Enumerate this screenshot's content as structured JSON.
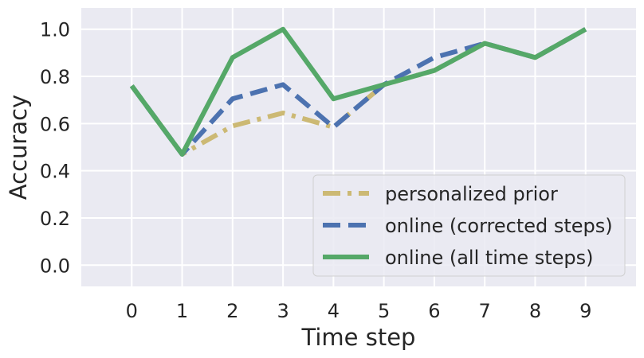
{
  "chart_data": {
    "type": "line",
    "xlabel": "Time step",
    "ylabel": "Accuracy",
    "x": [
      0,
      1,
      2,
      3,
      4,
      5,
      6,
      7,
      8,
      9
    ],
    "xticks": [
      "0",
      "1",
      "2",
      "3",
      "4",
      "5",
      "6",
      "7",
      "8",
      "9"
    ],
    "xlim": [
      -1,
      10
    ],
    "yticks": [
      "0.0",
      "0.2",
      "0.4",
      "0.6",
      "0.8",
      "1.0"
    ],
    "ylim": [
      -0.09,
      1.09
    ],
    "grid": true,
    "legend_position": "lower-right",
    "background": "#eaeaf2",
    "series": [
      {
        "name": "personalized prior",
        "color": "#ccb974",
        "style": "dashdot",
        "values": [
          0.76,
          0.47,
          0.59,
          0.645,
          0.585,
          0.765,
          0.825,
          0.94,
          0.88,
          1.0
        ]
      },
      {
        "name": "online (corrected steps)",
        "color": "#4c72b0",
        "style": "dashed",
        "values": [
          0.76,
          0.47,
          0.705,
          0.765,
          0.585,
          0.765,
          0.88,
          0.94,
          0.88,
          1.0
        ]
      },
      {
        "name": "online (all time steps)",
        "color": "#55a868",
        "style": "solid",
        "values": [
          0.76,
          0.47,
          0.88,
          1.0,
          0.705,
          0.765,
          0.825,
          0.94,
          0.88,
          1.0
        ]
      }
    ]
  }
}
